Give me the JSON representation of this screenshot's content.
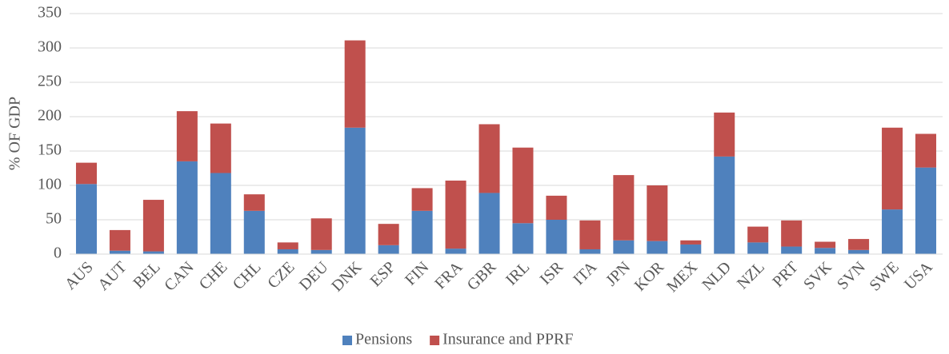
{
  "chart_data": {
    "type": "stacked_bar",
    "y_label": "% OF GDP",
    "categories": [
      "AUS",
      "AUT",
      "BEL",
      "CAN",
      "CHE",
      "CHL",
      "CZE",
      "DEU",
      "DNK",
      "ESP",
      "FIN",
      "FRA",
      "GBR",
      "IRL",
      "ISR",
      "ITA",
      "JPN",
      "KOR",
      "MEX",
      "NLD",
      "NZL",
      "PRT",
      "SVK",
      "SVN",
      "SWE",
      "USA"
    ],
    "series": [
      {
        "name": "Pensions",
        "color": "#4f81bd",
        "values": [
          102,
          5,
          4,
          135,
          118,
          63,
          7,
          6,
          184,
          13,
          63,
          8,
          89,
          45,
          50,
          7,
          20,
          19,
          14,
          142,
          17,
          11,
          9,
          6,
          65,
          126
        ]
      },
      {
        "name": "Insurance and PPRF",
        "color": "#c0504d",
        "values": [
          31,
          30,
          75,
          73,
          72,
          24,
          10,
          46,
          127,
          31,
          33,
          99,
          100,
          110,
          35,
          42,
          95,
          81,
          6,
          64,
          23,
          38,
          9,
          16,
          119,
          49
        ]
      }
    ],
    "ylim": [
      0,
      350
    ],
    "yticks": [
      0,
      50,
      100,
      150,
      200,
      250,
      300,
      350
    ],
    "grid": true,
    "legend": "bottom"
  }
}
